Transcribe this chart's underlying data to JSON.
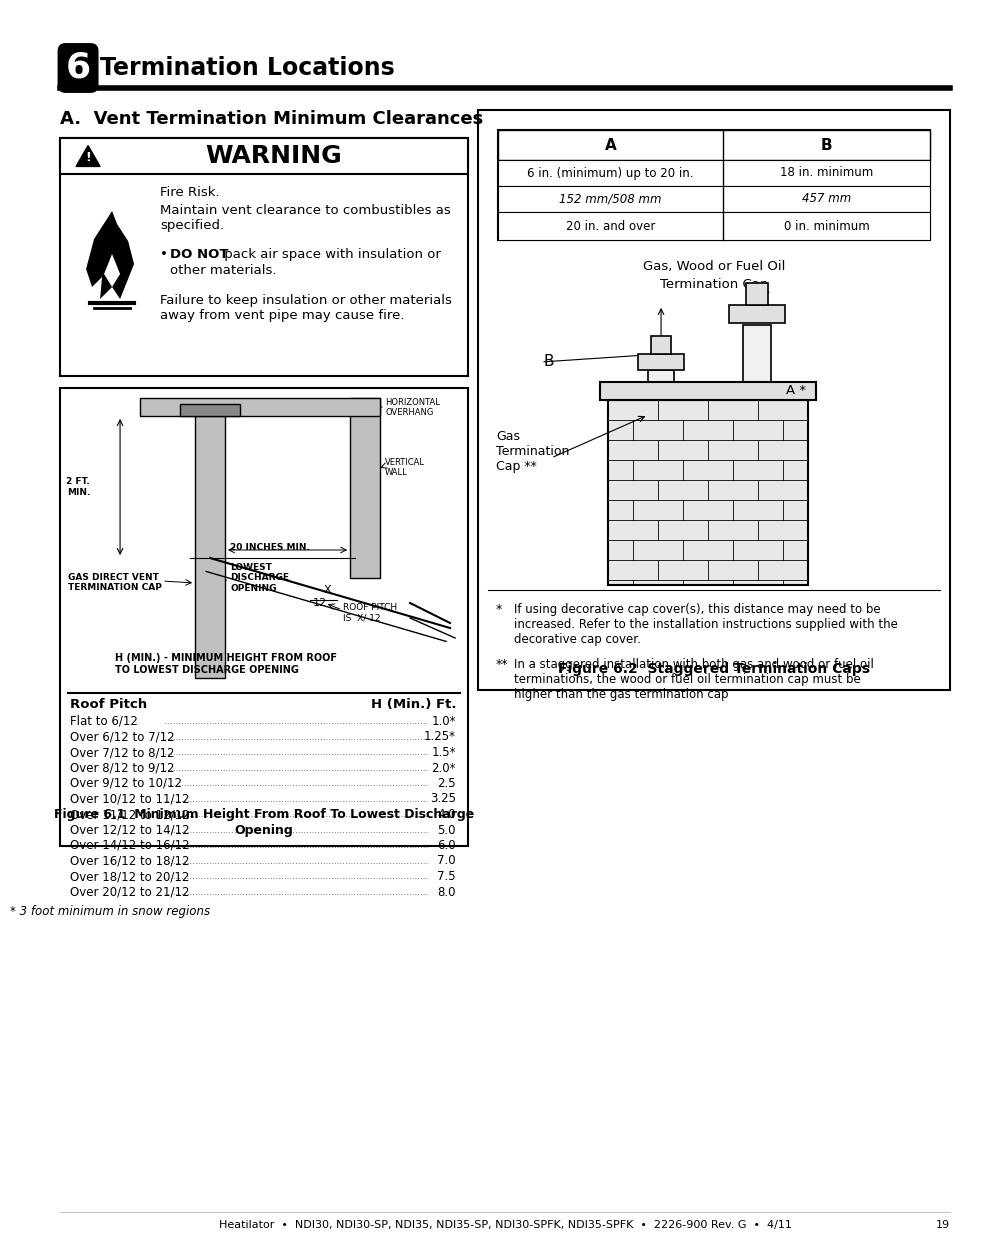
{
  "title": "Termination Locations",
  "section_num": "6",
  "section_a_title": "A.  Vent Termination Minimum Clearances",
  "table_headers": [
    "A",
    "B"
  ],
  "table_rows": [
    [
      "6 in. (minimum) up to 20 in.",
      "18 in. minimum"
    ],
    [
      "152 mm/508 mm",
      "457 mm"
    ],
    [
      "20 in. and over",
      "0 in. minimum"
    ]
  ],
  "fig1_caption_line1": "Figure 6.1  Minimum Height From Roof To Lowest Discharge",
  "fig1_caption_line2": "Opening",
  "fig2_caption": "Figure 6.2  Staggered Termination Caps",
  "roof_pitch_data": [
    [
      "Flat to 6/12",
      "1.0*"
    ],
    [
      "Over 6/12 to 7/12",
      "1.25*"
    ],
    [
      "Over 7/12 to 8/12",
      "1.5*"
    ],
    [
      "Over 8/12 to 9/12",
      "2.0*"
    ],
    [
      "Over 9/12 to 10/12",
      "2.5"
    ],
    [
      "Over 10/12 to 11/12",
      "3.25"
    ],
    [
      "Over 11/12 to 12/12",
      "4.0"
    ],
    [
      "Over 12/12 to 14/12",
      "5.0"
    ],
    [
      "Over 14/12 to 16/12",
      "6.0"
    ],
    [
      "Over 16/12 to 18/12",
      "7.0"
    ],
    [
      "Over 18/12 to 20/12",
      "7.5"
    ],
    [
      "Over 20/12 to 21/12",
      "8.0"
    ]
  ],
  "footnote1": "* 3 foot minimum in snow regions",
  "footnote2_star": "*",
  "footnote2_text": "If using decorative cap cover(s), this distance may need to be\nincreased. Refer to the installation instructions supplied with the\ndecorative cap cover.",
  "footnote3_star": "**",
  "footnote3_text": "In a staggered installation with both gas and wood or fuel oil\nterminations, the wood or fuel oil termination cap must be\nhigher than the gas termination cap",
  "footer_text": "Heatilator  •  NDI30, NDI30-SP, NDI35, NDI35-SP, NDI30-SPFK, NDI35-SPFK  •  2226-900 Rev. G  •  4/11",
  "page_num": "19",
  "bg_color": "#ffffff"
}
